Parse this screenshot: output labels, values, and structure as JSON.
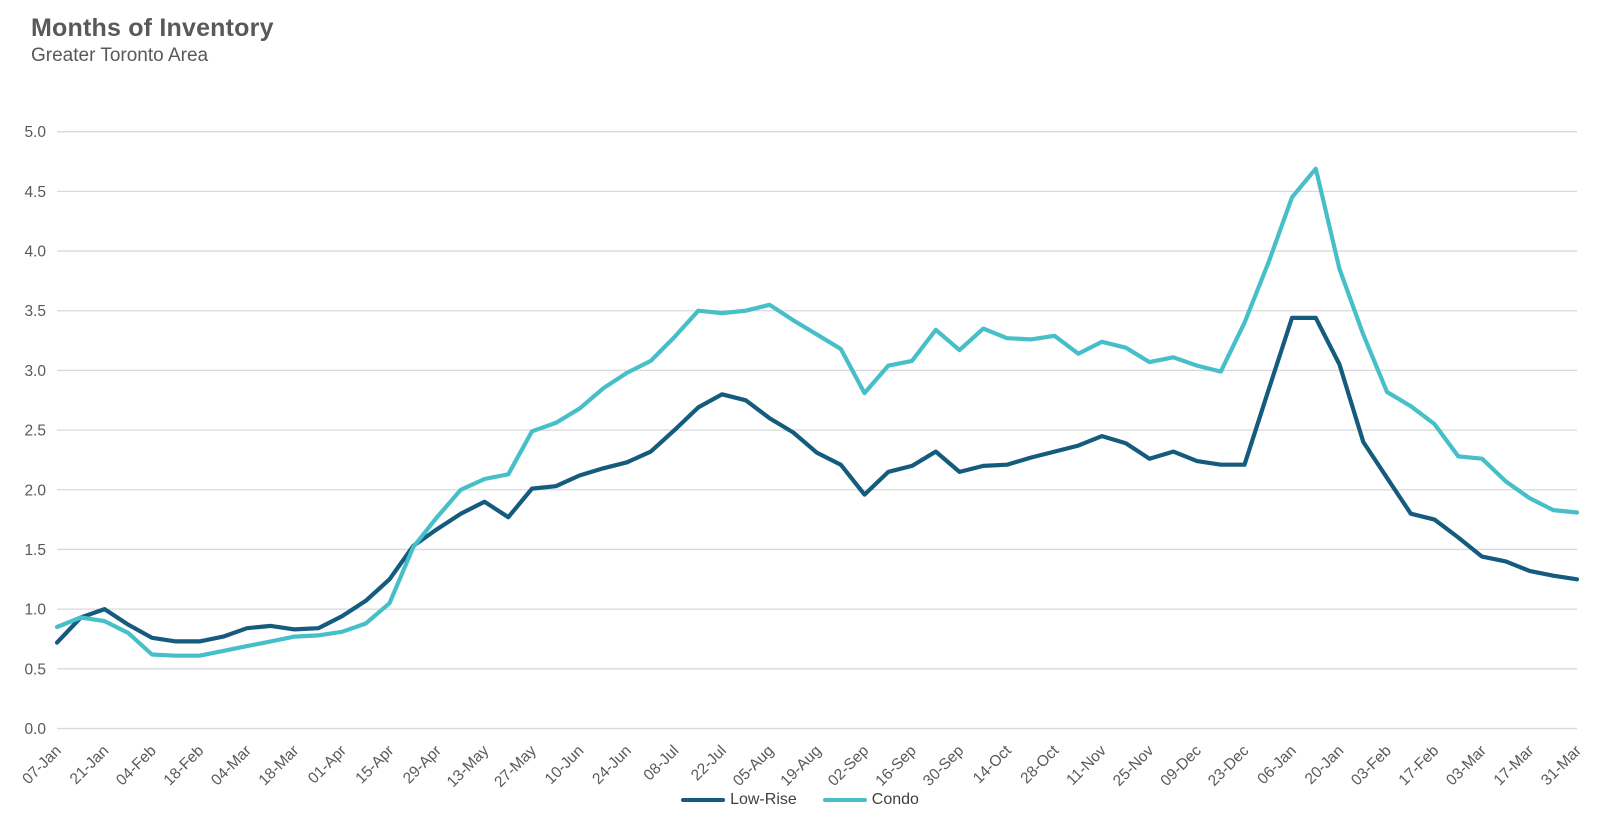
{
  "header": {
    "title": "Months of Inventory",
    "subtitle": "Greater Toronto Area"
  },
  "chart_data": {
    "type": "line",
    "title": "Months of Inventory",
    "subtitle": "Greater Toronto Area",
    "xlabel": "",
    "ylabel": "",
    "ylim": [
      0.0,
      5.0
    ],
    "ytick_step": 0.5,
    "y_tick_labels": [
      "0.0",
      "0.5",
      "1.0",
      "1.5",
      "2.0",
      "2.5",
      "3.0",
      "3.5",
      "4.0",
      "4.5",
      "5.0"
    ],
    "grid": "horizontal",
    "gridline_color": "#d9d9d9",
    "axis_label_color": "#595959",
    "legend_position": "bottom-center",
    "points_per_label": 2,
    "x_tick_labels": [
      "07-Jan",
      "21-Jan",
      "04-Feb",
      "18-Feb",
      "04-Mar",
      "18-Mar",
      "01-Apr",
      "15-Apr",
      "29-Apr",
      "13-May",
      "27-May",
      "10-Jun",
      "24-Jun",
      "08-Jul",
      "22-Jul",
      "05-Aug",
      "19-Aug",
      "02-Sep",
      "16-Sep",
      "30-Sep",
      "14-Oct",
      "28-Oct",
      "11-Nov",
      "25-Nov",
      "09-Dec",
      "23-Dec",
      "06-Jan",
      "20-Jan",
      "03-Feb",
      "17-Feb",
      "03-Mar",
      "17-Mar",
      "31-Mar"
    ],
    "series": [
      {
        "name": "Low-Rise",
        "color": "#145b7e",
        "values": [
          0.72,
          0.93,
          1.0,
          0.87,
          0.76,
          0.73,
          0.73,
          0.77,
          0.84,
          0.86,
          0.83,
          0.84,
          0.94,
          1.07,
          1.25,
          1.53,
          1.67,
          1.8,
          1.9,
          1.77,
          2.01,
          2.03,
          2.12,
          2.18,
          2.23,
          2.32,
          2.5,
          2.69,
          2.8,
          2.75,
          2.6,
          2.48,
          2.31,
          2.21,
          1.96,
          2.15,
          2.2,
          2.32,
          2.15,
          2.2,
          2.21,
          2.27,
          2.32,
          2.37,
          2.45,
          2.39,
          2.26,
          2.32,
          2.24,
          2.21,
          2.21,
          2.83,
          3.44,
          3.44,
          3.05,
          2.4,
          2.1,
          1.8,
          1.75,
          1.6,
          1.44,
          1.4,
          1.32,
          1.28,
          1.25
        ]
      },
      {
        "name": "Condo",
        "color": "#46bfc9",
        "values": [
          0.85,
          0.93,
          0.9,
          0.8,
          0.62,
          0.61,
          0.61,
          0.65,
          0.69,
          0.73,
          0.77,
          0.78,
          0.81,
          0.88,
          1.05,
          1.52,
          1.77,
          2.0,
          2.09,
          2.13,
          2.49,
          2.56,
          2.68,
          2.85,
          2.98,
          3.08,
          3.28,
          3.5,
          3.48,
          3.5,
          3.55,
          3.42,
          3.3,
          3.18,
          2.81,
          3.04,
          3.08,
          3.34,
          3.17,
          3.35,
          3.27,
          3.26,
          3.29,
          3.14,
          3.24,
          3.19,
          3.07,
          3.11,
          3.04,
          2.99,
          3.4,
          3.9,
          4.45,
          4.69,
          3.85,
          3.3,
          2.82,
          2.7,
          2.55,
          2.28,
          2.26,
          2.07,
          1.93,
          1.83,
          1.81
        ]
      }
    ]
  }
}
